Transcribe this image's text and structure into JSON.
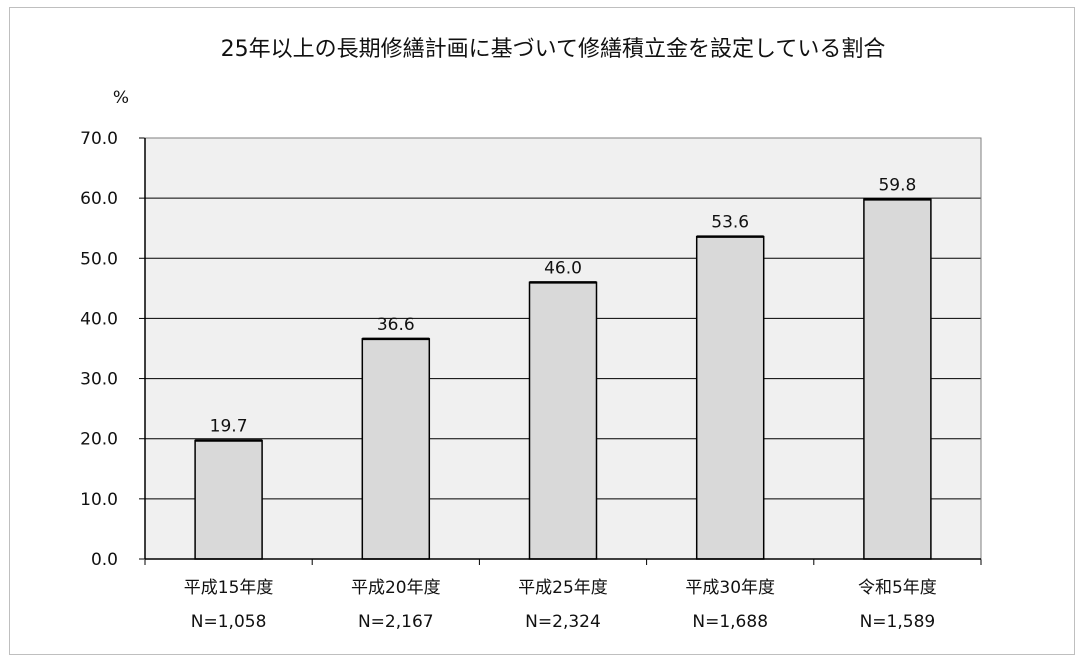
{
  "chart_data": {
    "type": "bar",
    "title": "25年以上の長期修繕計画に基づいて修繕積立金を設定している割合",
    "ylabel": "%",
    "xlabel": "",
    "ylim": [
      0,
      70
    ],
    "yticks": [
      "0.0",
      "10.0",
      "20.0",
      "30.0",
      "40.0",
      "50.0",
      "60.0",
      "70.0"
    ],
    "categories": [
      {
        "year": "平成15年度",
        "n": "N=1,058"
      },
      {
        "year": "平成20年度",
        "n": "N=2,167"
      },
      {
        "year": "平成25年度",
        "n": "N=2,324"
      },
      {
        "year": "平成30年度",
        "n": "N=1,688"
      },
      {
        "year": "令和5年度",
        "n": "N=1,589"
      }
    ],
    "values": [
      19.7,
      36.6,
      46.0,
      53.6,
      59.8
    ],
    "value_labels": [
      "19.7",
      "36.6",
      "46.0",
      "53.6",
      "59.8"
    ],
    "grid": true,
    "colors": {
      "plot_background": "#f0f0f0",
      "bar_fill": "#d9d9d9",
      "bar_stroke": "#000000",
      "gridline": "#000000"
    }
  }
}
